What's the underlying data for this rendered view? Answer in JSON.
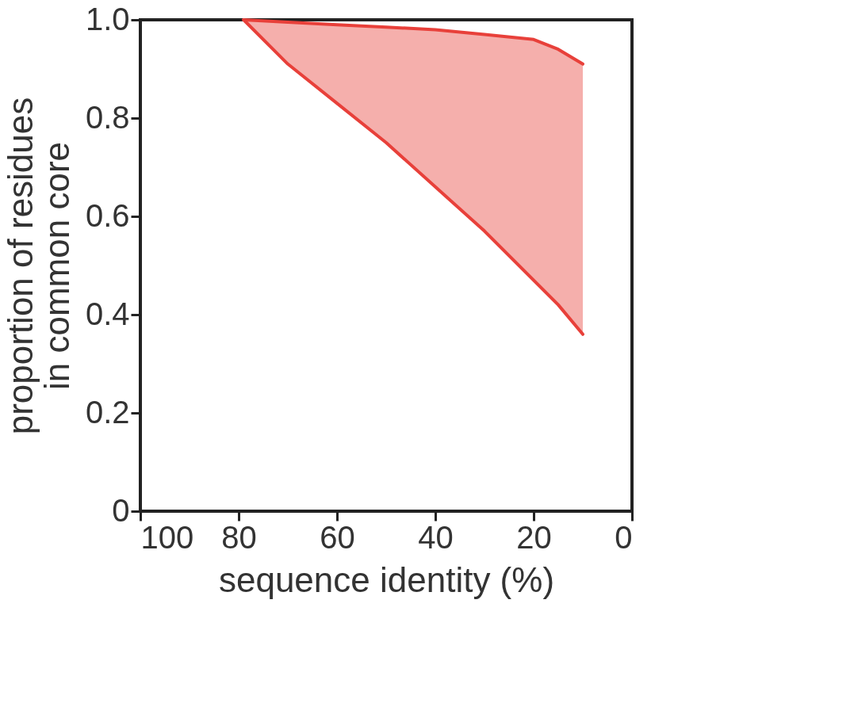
{
  "chart_data": {
    "type": "line",
    "xlabel": "sequence identity (%)",
    "ylabel": "proportion of residues\nin common core",
    "x": [
      79,
      70,
      60,
      50,
      40,
      30,
      20,
      15,
      10
    ],
    "series": [
      {
        "color": "#e8403a",
        "values": [
          1.0,
          0.995,
          0.99,
          0.985,
          0.98,
          0.97,
          0.96,
          0.94,
          0.91
        ],
        "lower": [
          1.0,
          0.91,
          0.83,
          0.75,
          0.66,
          0.57,
          0.47,
          0.42,
          0.36
        ],
        "upper": [
          1.0,
          0.995,
          0.99,
          0.985,
          0.98,
          0.97,
          0.96,
          0.94,
          0.91
        ]
      },
      {
        "color": "#e8403a",
        "values": [
          1.0,
          0.91,
          0.83,
          0.75,
          0.66,
          0.57,
          0.47,
          0.42,
          0.36
        ]
      }
    ],
    "xlim": [
      100,
      0
    ],
    "xticks": [
      100,
      80,
      60,
      40,
      20,
      0
    ],
    "ylim": [
      0,
      1
    ],
    "yticks": [
      0,
      0.2,
      0.4,
      0.6,
      0.8,
      {
        "value": 1,
        "label": "1.0"
      }
    ],
    "grid": false
  }
}
